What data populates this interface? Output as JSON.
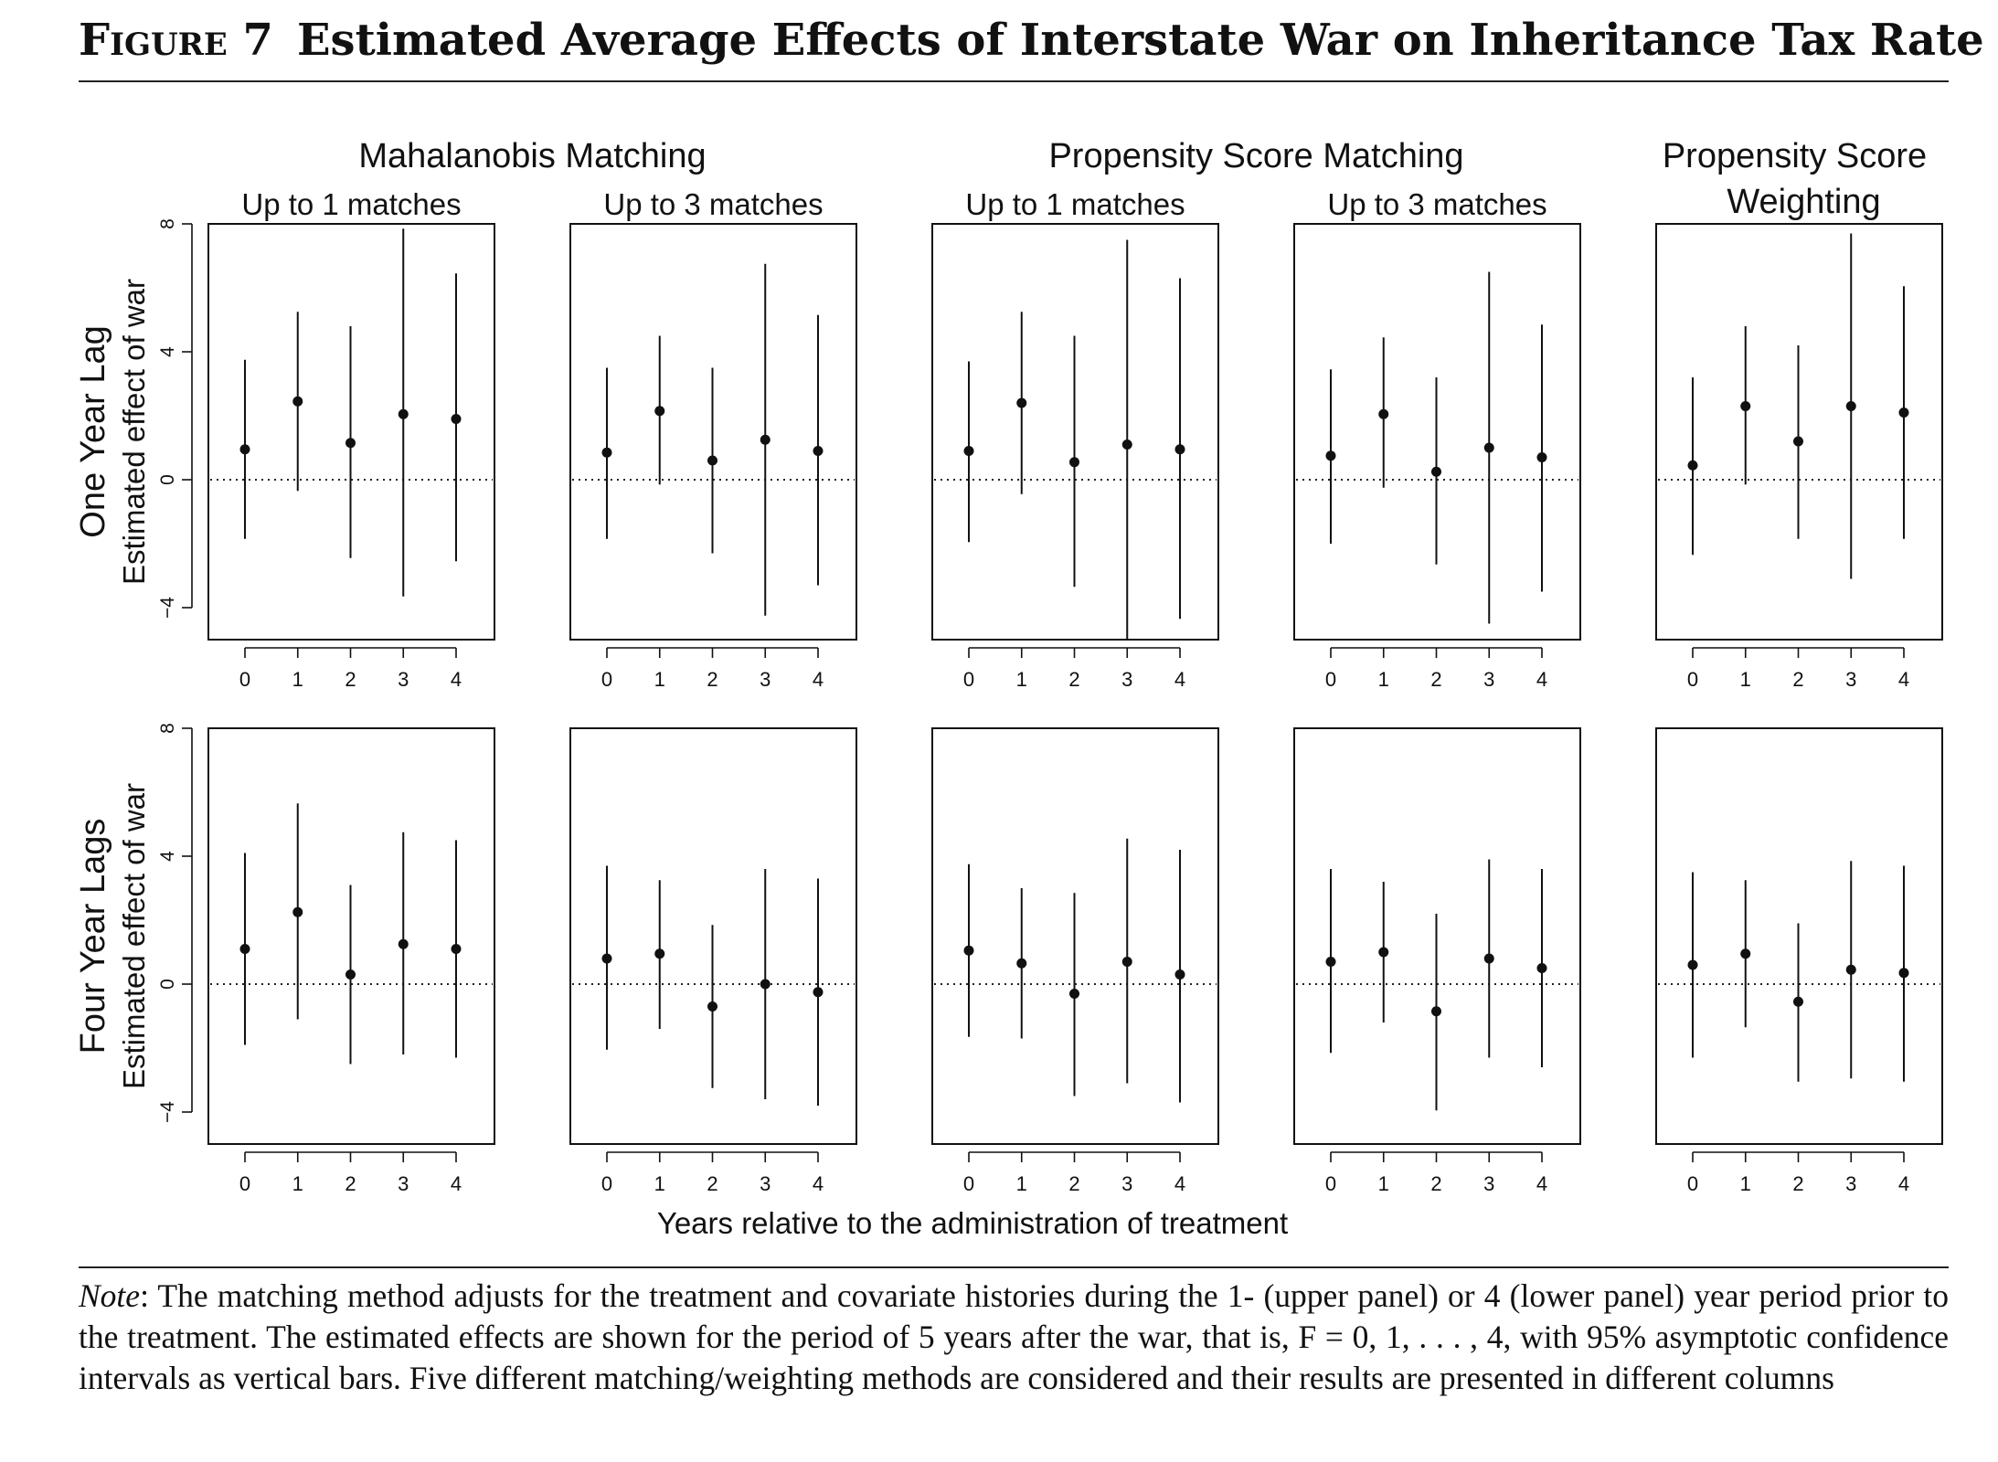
{
  "figure": {
    "label": "Figure 7",
    "title": "Estimated Average Effects of Interstate War on Inheritance Tax Rate"
  },
  "note": {
    "label": "Note",
    "text": ": The matching method adjusts for the treatment and covariate histories during the 1- (upper panel) or 4 (lower panel) year period prior to the treatment. The estimated effects are shown for the period of 5 years after the war, that is, F = 0, 1, . . . , 4, with 95% asymptotic confidence intervals as vertical bars. Five different matching/weighting methods are considered and their results are presented in different columns"
  },
  "chart_data": {
    "type": "scatter",
    "subtype": "point-estimates-with-confidence-intervals",
    "xlabel": "Years relative to the administration of treatment",
    "ylabel": "Estimated effect of war",
    "x": [
      0,
      1,
      2,
      3,
      4
    ],
    "ylim": [
      -5,
      8
    ],
    "yticks": [
      -4,
      0,
      4,
      8
    ],
    "reference_line": 0,
    "method_groups": [
      {
        "title": "Mahalanobis Matching",
        "columns": [
          0,
          1
        ]
      },
      {
        "title": "Propensity Score Matching",
        "columns": [
          2,
          3
        ]
      },
      {
        "title": "Propensity Score Weighting",
        "columns": [
          4
        ]
      }
    ],
    "columns": [
      "Up to 1 matches",
      "Up to 3 matches",
      "Up to 1 matches",
      "Up to 3 matches",
      ""
    ],
    "rows": [
      {
        "label": "One Year Lag",
        "panels": [
          {
            "estimate": [
              0.95,
              2.45,
              1.15,
              2.05,
              1.9
            ],
            "lower": [
              -1.85,
              -0.35,
              -2.45,
              -3.65,
              -2.55
            ],
            "upper": [
              3.75,
              5.25,
              4.8,
              7.85,
              6.45
            ]
          },
          {
            "estimate": [
              0.85,
              2.15,
              0.6,
              1.25,
              0.9
            ],
            "lower": [
              -1.85,
              -0.15,
              -2.3,
              -4.25,
              -3.3
            ],
            "upper": [
              3.5,
              4.5,
              3.5,
              6.75,
              5.15
            ]
          },
          {
            "estimate": [
              0.9,
              2.4,
              0.55,
              1.1,
              0.95
            ],
            "lower": [
              -1.95,
              -0.45,
              -3.35,
              -5.0,
              -4.35
            ],
            "upper": [
              3.7,
              5.25,
              4.5,
              7.5,
              6.3
            ]
          },
          {
            "estimate": [
              0.75,
              2.05,
              0.25,
              1.0,
              0.7
            ],
            "lower": [
              -2.0,
              -0.25,
              -2.65,
              -4.5,
              -3.5
            ],
            "upper": [
              3.45,
              4.45,
              3.2,
              6.5,
              4.85
            ]
          },
          {
            "estimate": [
              0.45,
              2.3,
              1.2,
              2.3,
              2.1
            ],
            "lower": [
              -2.35,
              -0.15,
              -1.85,
              -3.1,
              -1.85
            ],
            "upper": [
              3.2,
              4.8,
              4.2,
              7.7,
              6.05
            ]
          }
        ]
      },
      {
        "label": "Four Year Lags",
        "panels": [
          {
            "estimate": [
              1.1,
              2.25,
              0.3,
              1.25,
              1.1
            ],
            "lower": [
              -1.9,
              -1.1,
              -2.5,
              -2.2,
              -2.3
            ],
            "upper": [
              4.1,
              5.65,
              3.1,
              4.75,
              4.5
            ]
          },
          {
            "estimate": [
              0.8,
              0.95,
              -0.7,
              0.0,
              -0.25
            ],
            "lower": [
              -2.05,
              -1.4,
              -3.25,
              -3.6,
              -3.8
            ],
            "upper": [
              3.7,
              3.25,
              1.85,
              3.6,
              3.3
            ]
          },
          {
            "estimate": [
              1.05,
              0.65,
              -0.3,
              0.7,
              0.3
            ],
            "lower": [
              -1.65,
              -1.7,
              -3.5,
              -3.1,
              -3.7
            ],
            "upper": [
              3.75,
              3.0,
              2.85,
              4.55,
              4.2
            ]
          },
          {
            "estimate": [
              0.7,
              1.0,
              -0.85,
              0.8,
              0.5
            ],
            "lower": [
              -2.15,
              -1.2,
              -3.95,
              -2.3,
              -2.6
            ],
            "upper": [
              3.6,
              3.2,
              2.2,
              3.9,
              3.6
            ]
          },
          {
            "estimate": [
              0.6,
              0.95,
              -0.55,
              0.45,
              0.35
            ],
            "lower": [
              -2.3,
              -1.35,
              -3.05,
              -2.95,
              -3.05
            ],
            "upper": [
              3.5,
              3.25,
              1.9,
              3.85,
              3.7
            ]
          }
        ]
      }
    ]
  }
}
